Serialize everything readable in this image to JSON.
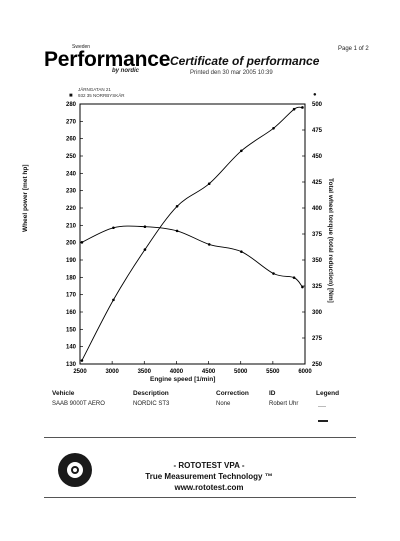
{
  "header": {
    "brand_small": "Sweden",
    "brand": "Performance",
    "brand_sub": "by nordic",
    "title": "Certificate of performance",
    "printed": "Printed den 30 mar 2005 10:39",
    "page": "Page 1 of 2",
    "address_line1": "JÄRNGATAN 21",
    "address_line2": "932 35 NORRBYSKÄR",
    "left_marker": "■",
    "right_marker": "●"
  },
  "chart_data": {
    "type": "line",
    "xlabel": "Engine speed [1/min]",
    "ylabel": "Wheel power [met hp]",
    "y2label": "Total wheel torque (total reduction) [Nm]",
    "xlim": [
      2500,
      6000
    ],
    "ylim": [
      130,
      280
    ],
    "y2lim": [
      250,
      500
    ],
    "x_ticks": [
      "2500",
      "3000",
      "3500",
      "4000",
      "4500",
      "5000",
      "5500",
      "6000"
    ],
    "y_ticks": [
      "130",
      "140",
      "150",
      "160",
      "170",
      "180",
      "190",
      "200",
      "210",
      "220",
      "230",
      "240",
      "250",
      "260",
      "270",
      "280"
    ],
    "y2_ticks": [
      "250",
      "275",
      "300",
      "325",
      "350",
      "375",
      "400",
      "425",
      "450",
      "475",
      "500"
    ],
    "grid": false,
    "series": [
      {
        "axis": "left",
        "x": [
          2530,
          3020,
          3510,
          4010,
          4510,
          5010,
          5510,
          5830,
          5960
        ],
        "values": [
          132,
          167,
          196,
          221,
          234,
          253,
          266,
          277,
          278
        ]
      },
      {
        "axis": "right",
        "x": [
          2530,
          3020,
          3510,
          4010,
          4510,
          5010,
          5510,
          5830,
          5960
        ],
        "values": [
          367,
          381,
          382,
          378,
          365,
          358,
          337,
          333,
          324
        ]
      }
    ]
  },
  "info": {
    "headers": [
      "Vehicle",
      "Description",
      "Correction",
      "ID",
      "Legend"
    ],
    "values": [
      "SAAB 9000T AERO",
      "NORDIC ST3",
      "None",
      "Robert Uhr"
    ]
  },
  "footer": {
    "seal_text": "ROTOTEST",
    "line1": "- ROTOTEST VPA -",
    "line2": "True Measurement Technology ™",
    "line3": "www.rototest.com"
  }
}
